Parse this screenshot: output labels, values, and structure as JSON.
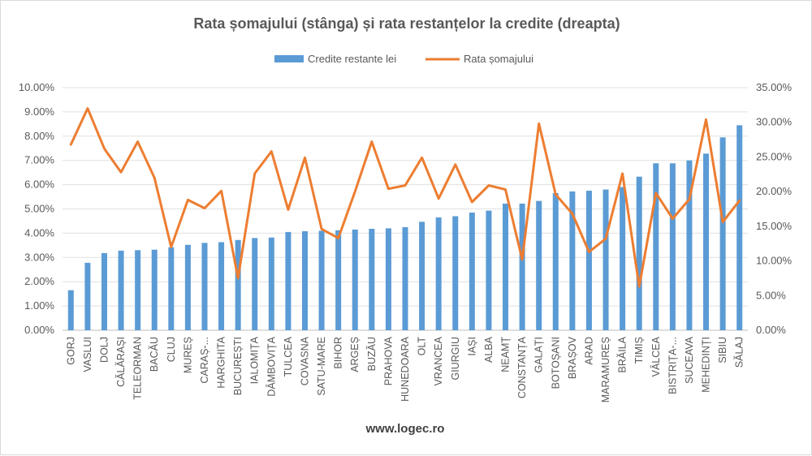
{
  "chart_data": {
    "type": "bar+line",
    "title": "Rata șomajului  (stânga) și rata restanțelor la credite (dreapta)",
    "footer": "www.logec.ro",
    "categories": [
      "GORJ",
      "VASLUI",
      "DOLJ",
      "CĂLĂRAȘI",
      "TELEORMAN",
      "BACĂU",
      "CLUJ",
      "MUREȘ",
      "CARAȘ-...",
      "HARGHITA",
      "BUCUREȘTI",
      "IALOMIȚA",
      "DÂMBOVIȚA",
      "TULCEA",
      "COVASNA",
      "SATU-MARE",
      "BIHOR",
      "ARGEȘ",
      "BUZĂU",
      "PRAHOVA",
      "HUNEDOARA",
      "OLT",
      "VRANCEA",
      "GIURGIU",
      "IAȘI",
      "ALBA",
      "NEAMȚ",
      "CONSTANȚA",
      "GALAȚI",
      "BOTOȘANI",
      "BRAȘOV",
      "ARAD",
      "MARAMUREȘ",
      "BRĂILA",
      "TIMIȘ",
      "VÂLCEA",
      "BISTRIȚA-...",
      "SUCEAVA",
      "MEHEDINȚI",
      "SIBIU",
      "SĂLAJ"
    ],
    "series": [
      {
        "name": "Credite restante lei",
        "type": "bar",
        "axis": "left",
        "color": "#5b9bd5",
        "values": [
          1.65,
          2.78,
          3.18,
          3.28,
          3.3,
          3.32,
          3.42,
          3.52,
          3.6,
          3.63,
          3.72,
          3.8,
          3.82,
          4.05,
          4.08,
          4.1,
          4.12,
          4.15,
          4.18,
          4.2,
          4.25,
          4.47,
          4.65,
          4.7,
          4.85,
          4.93,
          5.22,
          5.22,
          5.33,
          5.65,
          5.72,
          5.75,
          5.8,
          5.9,
          6.33,
          6.88,
          6.88,
          7.0,
          7.28,
          7.95,
          8.45
        ]
      },
      {
        "name": "Rata șomajului",
        "type": "line",
        "axis": "right",
        "color": "#ed7d31",
        "values": [
          26.8,
          32.0,
          26.2,
          22.8,
          27.2,
          22.0,
          12.0,
          18.8,
          17.6,
          20.1,
          7.5,
          22.6,
          25.8,
          17.4,
          24.9,
          14.6,
          13.3,
          20.0,
          27.2,
          20.4,
          20.9,
          24.9,
          19.0,
          23.9,
          18.5,
          20.9,
          20.3,
          10.2,
          29.8,
          19.6,
          16.8,
          11.3,
          13.2,
          22.6,
          6.3,
          19.8,
          16.1,
          18.9,
          30.4,
          15.6,
          18.7
        ]
      }
    ],
    "y_left": {
      "min": 0,
      "max": 10,
      "ticks": [
        "0.00%",
        "1.00%",
        "2.00%",
        "3.00%",
        "4.00%",
        "5.00%",
        "6.00%",
        "7.00%",
        "8.00%",
        "9.00%",
        "10.00%"
      ]
    },
    "y_right": {
      "min": 0,
      "max": 35,
      "ticks": [
        "0.00%",
        "5.00%",
        "10.00%",
        "15.00%",
        "20.00%",
        "25.00%",
        "30.00%",
        "35.00%"
      ]
    },
    "grid": true,
    "legend": "top"
  }
}
